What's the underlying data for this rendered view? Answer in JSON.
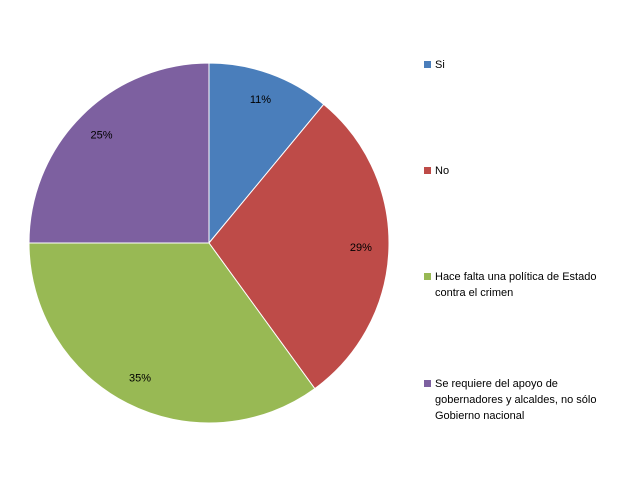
{
  "chart_data": {
    "type": "pie",
    "title": "",
    "legend_position": "right",
    "slices": [
      {
        "label": "Si",
        "value": 11,
        "value_label": "11%",
        "color": "#4a7ebb"
      },
      {
        "label": "No",
        "value": 29,
        "value_label": "29%",
        "color": "#be4b48"
      },
      {
        "label": "Hace falta una política de Estado contra el crimen",
        "value": 35,
        "value_label": "35%",
        "color": "#98b954"
      },
      {
        "label": "Se requiere del apoyo de gobernadores y alcaldes, no sólo Gobierno nacional",
        "value": 25,
        "value_label": "25%",
        "color": "#7d60a0"
      }
    ]
  }
}
